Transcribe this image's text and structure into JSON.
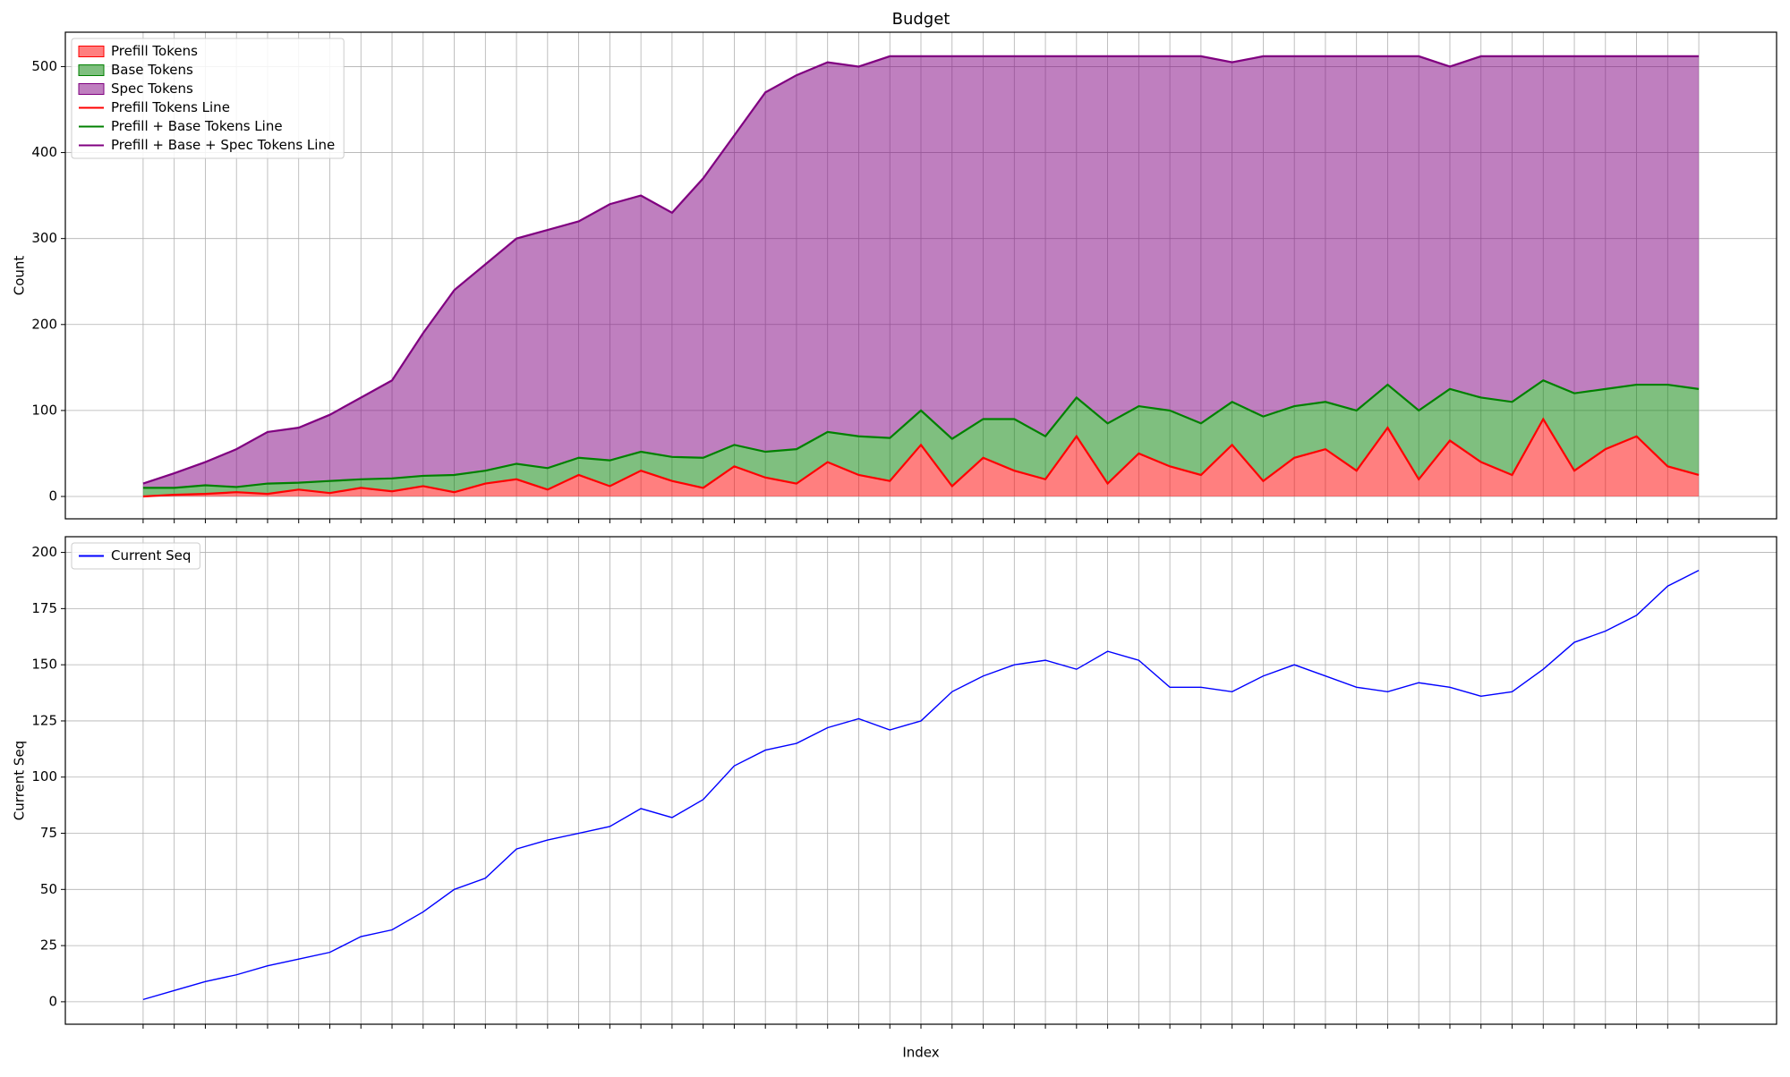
{
  "chart_data": [
    {
      "type": "stacked_area",
      "title": "Budget",
      "ylabel": "Count",
      "x": [
        0,
        10,
        20,
        30,
        40,
        50,
        60,
        70,
        80,
        90,
        100,
        110,
        120,
        130,
        140,
        150,
        160,
        170,
        180,
        190,
        200,
        210,
        220,
        230,
        240,
        250,
        260,
        270,
        280,
        290,
        300,
        310,
        320,
        330,
        340,
        350,
        360,
        370,
        380,
        390,
        400,
        410,
        420,
        430,
        440,
        450,
        460,
        470,
        480,
        490,
        500
      ],
      "xlim": [
        -25,
        525
      ],
      "ylim": [
        -26,
        540
      ],
      "xticks": [
        0,
        10,
        20,
        30,
        40,
        50,
        60,
        70,
        80,
        90,
        100,
        110,
        120,
        130,
        140,
        150,
        160,
        170,
        180,
        190,
        200,
        210,
        220,
        230,
        240,
        250,
        260,
        270,
        280,
        290,
        300,
        310,
        320,
        330,
        340,
        350,
        360,
        370,
        380,
        390,
        400,
        410,
        420,
        430,
        440,
        450,
        460,
        470,
        480,
        490,
        500
      ],
      "yticks": [
        0,
        100,
        200,
        300,
        400,
        500
      ],
      "grid": true,
      "legend": "upper left",
      "series": [
        {
          "name": "Prefill Tokens",
          "line_name": "Prefill Tokens Line",
          "color": "#ff0000",
          "line_color": "#ff0000",
          "values": [
            0,
            2,
            3,
            5,
            3,
            8,
            4,
            10,
            6,
            12,
            5,
            15,
            20,
            8,
            25,
            12,
            30,
            18,
            10,
            35,
            22,
            15,
            40,
            25,
            18,
            60,
            12,
            45,
            30,
            20,
            70,
            15,
            50,
            35,
            25,
            60,
            18,
            45,
            55,
            30,
            80,
            20,
            65,
            40,
            25,
            90,
            30,
            55,
            70,
            35,
            25
          ]
        },
        {
          "name": "Base Tokens",
          "line_name": "Prefill + Base Tokens Line",
          "color": "#008000",
          "line_color": "#008000",
          "values": [
            10,
            8,
            10,
            6,
            12,
            8,
            14,
            10,
            15,
            12,
            20,
            15,
            18,
            25,
            20,
            30,
            22,
            28,
            35,
            25,
            30,
            40,
            35,
            45,
            50,
            40,
            55,
            45,
            60,
            50,
            45,
            70,
            55,
            65,
            60,
            50,
            75,
            60,
            55,
            70,
            50,
            80,
            60,
            75,
            85,
            45,
            90,
            70,
            60,
            95,
            100
          ]
        },
        {
          "name": "Spec Tokens",
          "line_name": "Prefill + Base + Spec Tokens Line",
          "color": "#800080",
          "line_color": "#800080",
          "values": [
            5,
            17,
            27,
            44,
            60,
            64,
            77,
            95,
            114,
            166,
            215,
            240,
            262,
            277,
            275,
            298,
            298,
            284,
            325,
            360,
            418,
            435,
            430,
            430,
            444,
            412,
            445,
            422,
            422,
            442,
            397,
            427,
            407,
            412,
            427,
            395,
            419,
            407,
            402,
            412,
            382,
            412,
            375,
            397,
            402,
            377,
            392,
            387,
            382,
            382,
            387
          ]
        }
      ]
    },
    {
      "type": "line",
      "ylabel": "Current Seq",
      "xlabel": "Index",
      "x": [
        0,
        10,
        20,
        30,
        40,
        50,
        60,
        70,
        80,
        90,
        100,
        110,
        120,
        130,
        140,
        150,
        160,
        170,
        180,
        190,
        200,
        210,
        220,
        230,
        240,
        250,
        260,
        270,
        280,
        290,
        300,
        310,
        320,
        330,
        340,
        350,
        360,
        370,
        380,
        390,
        400,
        410,
        420,
        430,
        440,
        450,
        460,
        470,
        480,
        490,
        500
      ],
      "xlim": [
        -25,
        525
      ],
      "ylim": [
        -10,
        207
      ],
      "xticks": [
        0,
        10,
        20,
        30,
        40,
        50,
        60,
        70,
        80,
        90,
        100,
        110,
        120,
        130,
        140,
        150,
        160,
        170,
        180,
        190,
        200,
        210,
        220,
        230,
        240,
        250,
        260,
        270,
        280,
        290,
        300,
        310,
        320,
        330,
        340,
        350,
        360,
        370,
        380,
        390,
        400,
        410,
        420,
        430,
        440,
        450,
        460,
        470,
        480,
        490,
        500
      ],
      "yticks": [
        0,
        25,
        50,
        75,
        100,
        125,
        150,
        175,
        200
      ],
      "grid": true,
      "legend": "upper left",
      "series": [
        {
          "name": "Current Seq",
          "color": "#0000ff",
          "values": [
            1,
            5,
            9,
            12,
            16,
            19,
            22,
            29,
            32,
            40,
            50,
            55,
            68,
            72,
            75,
            78,
            86,
            82,
            90,
            105,
            112,
            115,
            122,
            126,
            121,
            125,
            138,
            145,
            150,
            152,
            148,
            156,
            152,
            140,
            140,
            138,
            145,
            150,
            145,
            140,
            138,
            142,
            140,
            136,
            138,
            148,
            160,
            165,
            172,
            185,
            192
          ]
        }
      ]
    }
  ]
}
